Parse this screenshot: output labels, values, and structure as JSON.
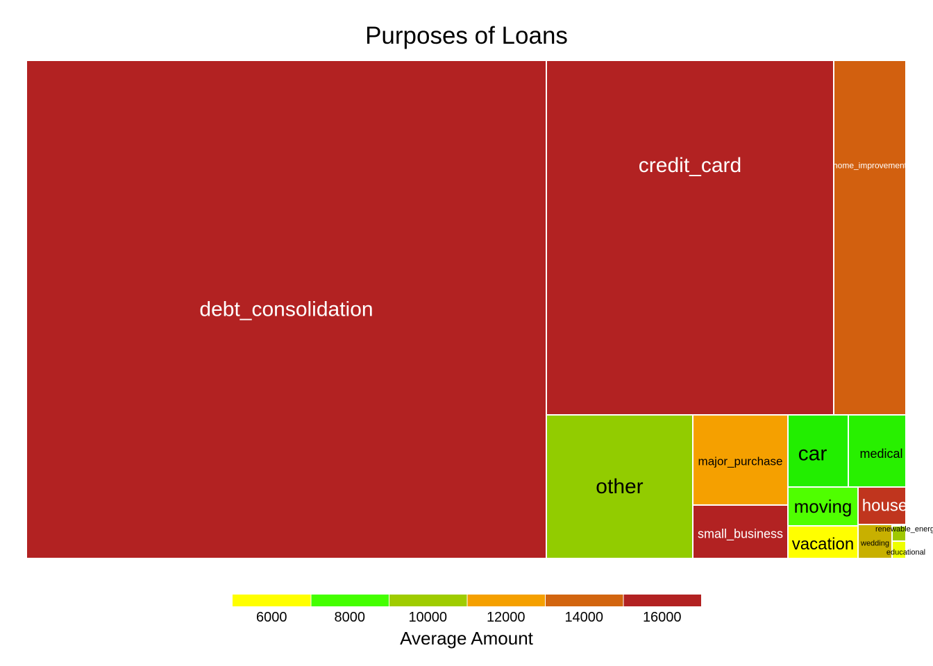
{
  "chart_data": {
    "type": "treemap",
    "title": "Purposes of Loans",
    "legend": {
      "title": "Average Amount",
      "ticks": [
        6000,
        8000,
        10000,
        12000,
        14000,
        16000
      ],
      "colors": [
        "#ffff00",
        "#44ff00",
        "#9fcc00",
        "#f5a000",
        "#d2650f",
        "#b22222"
      ],
      "position": "bottom"
    },
    "nodes": [
      {
        "label": "debt_consolidation",
        "avg_amount": 16000,
        "color": "#b22222"
      },
      {
        "label": "credit_card",
        "avg_amount": 16000,
        "color": "#b22222"
      },
      {
        "label": "home_improvement",
        "avg_amount": 14000,
        "color": "#d2600f"
      },
      {
        "label": "other",
        "avg_amount": 10000,
        "color": "#92cc00"
      },
      {
        "label": "major_purchase",
        "avg_amount": 12000,
        "color": "#f5a000"
      },
      {
        "label": "small_business",
        "avg_amount": 16000,
        "color": "#b22222"
      },
      {
        "label": "car",
        "avg_amount": 8000,
        "color": "#22ee00"
      },
      {
        "label": "medical",
        "avg_amount": 8000,
        "color": "#28f000"
      },
      {
        "label": "moving",
        "avg_amount": 7000,
        "color": "#4fff00"
      },
      {
        "label": "house",
        "avg_amount": 15000,
        "color": "#c0351e"
      },
      {
        "label": "vacation",
        "avg_amount": 6000,
        "color": "#ffff00"
      },
      {
        "label": "renewable_energy",
        "avg_amount": 9000,
        "color": "#9fc800"
      },
      {
        "label": "wedding",
        "avg_amount": 11000,
        "color": "#c8b000"
      },
      {
        "label": "educational",
        "avg_amount": 6500,
        "color": "#eeff00"
      }
    ]
  }
}
